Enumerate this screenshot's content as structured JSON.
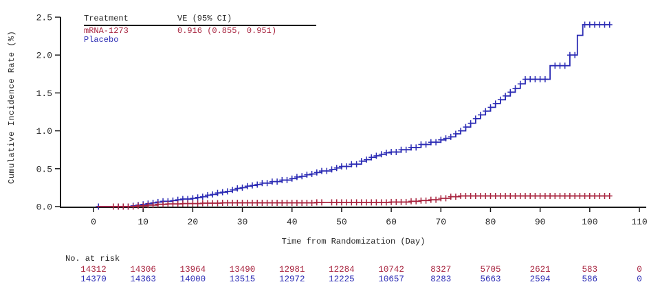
{
  "figure": {
    "background": "#ffffff",
    "text_color": "#262626",
    "axis_color": "#1a1a1a"
  },
  "legend": {
    "col1_header": "Treatment",
    "col2_header": "VE (95% CI)",
    "rows": [
      {
        "treatment": "mRNA-1273",
        "ve": "0.916 (0.855, 0.951)",
        "color": "#a8243f"
      },
      {
        "treatment": "Placebo",
        "ve": "",
        "color": "#2b2bb4"
      }
    ]
  },
  "chart_data": {
    "type": "line",
    "subtype": "kaplan-meier-cumulative-incidence-step",
    "title": "",
    "xlabel": "Time from Randomization (Day)",
    "ylabel": "Cumulative Incidence Rate (%)",
    "xlim": [
      0,
      110
    ],
    "ylim": [
      0.0,
      2.5
    ],
    "grid": false,
    "legend_position": "top-left-table",
    "x_ticks": [
      0,
      10,
      20,
      30,
      40,
      50,
      60,
      70,
      80,
      90,
      100,
      110
    ],
    "x_tick_labels": [
      "0",
      "10",
      "20",
      "30",
      "40",
      "50",
      "60",
      "70",
      "80",
      "90",
      "100",
      "110"
    ],
    "y_ticks": [
      0.0,
      0.5,
      1.0,
      1.5,
      2.0,
      2.5
    ],
    "y_tick_labels": [
      "0.0",
      "0.5",
      "1.0",
      "1.5",
      "2.0",
      "2.5"
    ],
    "series": [
      {
        "name": "mRNA-1273",
        "color": "#a8243f",
        "ve_95ci": "0.916 (0.855, 0.951)",
        "steps": [
          [
            0.7,
            0
          ],
          [
            9,
            0.01
          ],
          [
            11,
            0.02
          ],
          [
            13,
            0.03
          ],
          [
            15,
            0.035
          ],
          [
            18,
            0.04
          ],
          [
            22,
            0.045
          ],
          [
            26,
            0.05
          ],
          [
            45,
            0.055
          ],
          [
            60,
            0.06
          ],
          [
            64,
            0.07
          ],
          [
            66,
            0.08
          ],
          [
            68,
            0.09
          ],
          [
            70,
            0.11
          ],
          [
            72,
            0.13
          ],
          [
            74,
            0.14
          ],
          [
            104,
            0.14
          ]
        ],
        "censor_days": [
          4,
          5,
          6,
          7,
          8,
          9,
          10,
          11,
          12,
          13,
          14,
          15,
          16,
          17,
          18,
          19,
          20,
          21,
          22,
          23,
          24,
          25,
          26,
          27,
          28,
          29,
          30,
          31,
          32,
          33,
          34,
          35,
          36,
          37,
          38,
          39,
          40,
          41,
          42,
          43,
          44,
          45,
          46,
          48,
          49,
          50,
          51,
          52,
          53,
          54,
          55,
          56,
          57,
          58,
          59,
          60,
          61,
          62,
          63,
          64,
          65,
          66,
          67,
          68,
          69,
          70,
          71,
          72,
          73,
          74,
          75,
          76,
          77,
          78,
          79,
          80,
          81,
          82,
          83,
          84,
          85,
          86,
          87,
          88,
          89,
          90,
          91,
          92,
          93,
          94,
          95,
          96,
          97,
          98,
          99,
          100,
          101,
          102,
          103,
          104
        ]
      },
      {
        "name": "Placebo",
        "color": "#2b2bb4",
        "ve_95ci": "",
        "steps": [
          [
            0.7,
            0
          ],
          [
            8,
            0.01
          ],
          [
            9,
            0.02
          ],
          [
            10,
            0.03
          ],
          [
            11,
            0.04
          ],
          [
            12,
            0.05
          ],
          [
            13,
            0.06
          ],
          [
            14,
            0.07
          ],
          [
            16,
            0.08
          ],
          [
            17,
            0.09
          ],
          [
            18,
            0.1
          ],
          [
            20,
            0.11
          ],
          [
            21,
            0.12
          ],
          [
            22,
            0.13
          ],
          [
            23,
            0.15
          ],
          [
            24,
            0.16
          ],
          [
            25,
            0.18
          ],
          [
            26,
            0.19
          ],
          [
            27,
            0.2
          ],
          [
            28,
            0.22
          ],
          [
            29,
            0.24
          ],
          [
            30,
            0.25
          ],
          [
            31,
            0.27
          ],
          [
            32,
            0.28
          ],
          [
            33,
            0.29
          ],
          [
            34,
            0.31
          ],
          [
            36,
            0.33
          ],
          [
            38,
            0.35
          ],
          [
            40,
            0.37
          ],
          [
            41,
            0.39
          ],
          [
            42,
            0.4
          ],
          [
            43,
            0.42
          ],
          [
            44,
            0.43
          ],
          [
            45,
            0.45
          ],
          [
            46,
            0.47
          ],
          [
            48,
            0.49
          ],
          [
            49,
            0.51
          ],
          [
            50,
            0.53
          ],
          [
            52,
            0.56
          ],
          [
            54,
            0.6
          ],
          [
            55,
            0.62
          ],
          [
            56,
            0.65
          ],
          [
            57,
            0.67
          ],
          [
            58,
            0.69
          ],
          [
            59,
            0.71
          ],
          [
            60,
            0.72
          ],
          [
            62,
            0.75
          ],
          [
            64,
            0.78
          ],
          [
            66,
            0.82
          ],
          [
            68,
            0.85
          ],
          [
            70,
            0.88
          ],
          [
            71,
            0.9
          ],
          [
            72,
            0.92
          ],
          [
            73,
            0.96
          ],
          [
            74,
            1.0
          ],
          [
            75,
            1.05
          ],
          [
            76,
            1.1
          ],
          [
            77,
            1.16
          ],
          [
            78,
            1.21
          ],
          [
            79,
            1.26
          ],
          [
            80,
            1.31
          ],
          [
            81,
            1.36
          ],
          [
            82,
            1.41
          ],
          [
            83,
            1.46
          ],
          [
            84,
            1.51
          ],
          [
            85,
            1.56
          ],
          [
            86,
            1.62
          ],
          [
            87,
            1.68
          ],
          [
            92,
            1.86
          ],
          [
            96,
            2.0
          ],
          [
            97.5,
            2.26
          ],
          [
            98.6,
            2.4
          ],
          [
            104,
            2.4
          ]
        ],
        "censor_days": [
          1,
          5,
          6,
          7,
          8,
          9,
          10,
          11,
          12,
          13,
          14,
          15,
          16,
          17,
          18,
          19,
          20,
          21,
          22,
          23,
          24,
          25,
          26,
          27,
          28,
          29,
          30,
          31,
          32,
          33,
          34,
          35,
          36,
          37,
          38,
          39,
          40,
          41,
          42,
          43,
          44,
          45,
          46,
          47,
          48,
          49,
          50,
          51,
          52,
          53,
          54,
          55,
          56,
          57,
          58,
          59,
          60,
          61,
          62,
          63,
          64,
          65,
          66,
          67,
          68,
          69,
          70,
          71,
          72,
          73,
          74,
          75,
          76,
          77,
          78,
          79,
          80,
          81,
          82,
          83,
          84,
          85,
          86,
          87,
          88,
          89,
          90,
          91,
          93,
          94,
          95,
          96,
          97,
          99,
          100,
          101,
          102,
          103,
          104
        ]
      }
    ],
    "risk_table": {
      "label": "No. at risk",
      "days": [
        0,
        10,
        20,
        30,
        40,
        50,
        60,
        70,
        80,
        90,
        100,
        110
      ],
      "rows": [
        {
          "name": "mRNA-1273",
          "color": "#a8243f",
          "values": [
            14312,
            14306,
            13964,
            13490,
            12981,
            12284,
            10742,
            8327,
            5705,
            2621,
            583,
            0
          ]
        },
        {
          "name": "Placebo",
          "color": "#2b2bb4",
          "values": [
            14370,
            14363,
            14000,
            13515,
            12972,
            12225,
            10657,
            8283,
            5663,
            2594,
            586,
            0
          ]
        }
      ]
    }
  }
}
